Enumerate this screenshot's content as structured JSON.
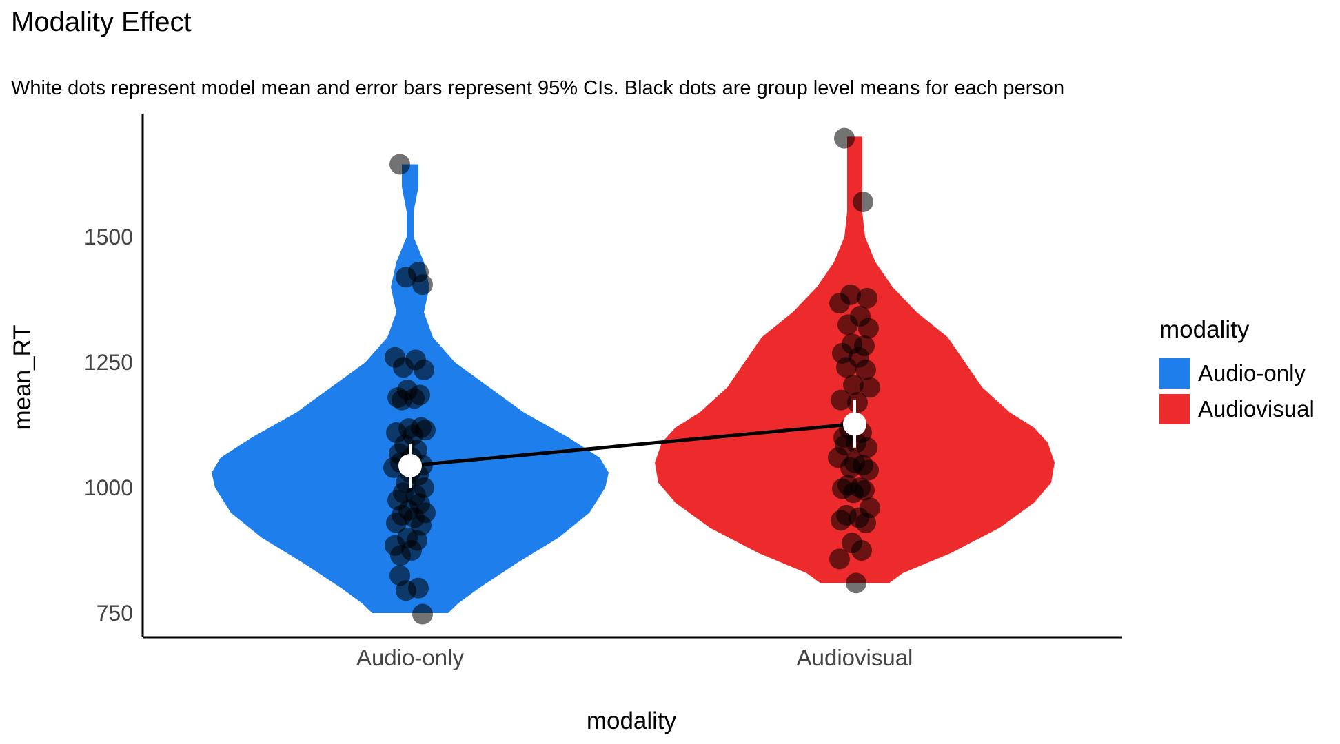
{
  "chart_data": {
    "type": "violin",
    "title": "Modality Effect",
    "subtitle": "White dots represent model mean and error bars represent 95% CIs. Black dots are group level means for each person",
    "xlabel": "modality",
    "ylabel": "mean_RT",
    "ylim": [
      700,
      1750
    ],
    "yticks": [
      750,
      1000,
      1250,
      1500
    ],
    "categories": [
      "Audio-only",
      "Audiovisual"
    ],
    "legend": {
      "title": "modality",
      "position": "right"
    },
    "grid": false,
    "series": [
      {
        "name": "Audio-only",
        "color": "#1e7fec",
        "model_mean": 1044,
        "ci": [
          1000,
          1088
        ],
        "violin_range": [
          750,
          1645
        ],
        "points": [
          1645,
          1430,
          1420,
          1405,
          1260,
          1255,
          1240,
          1235,
          1195,
          1185,
          1180,
          1178,
          1175,
          1120,
          1118,
          1115,
          1110,
          1105,
          1085,
          1075,
          1068,
          1060,
          1050,
          1045,
          1040,
          1030,
          1025,
          1010,
          1000,
          990,
          985,
          975,
          968,
          955,
          950,
          945,
          940,
          930,
          925,
          900,
          895,
          885,
          875,
          865,
          825,
          800,
          795,
          748
        ]
      },
      {
        "name": "Audiovisual",
        "color": "#ed2b2c",
        "model_mean": 1127,
        "ci": [
          1080,
          1175
        ],
        "violin_range": [
          810,
          1700
        ],
        "points": [
          1697,
          1570,
          1385,
          1378,
          1368,
          1342,
          1325,
          1318,
          1287,
          1283,
          1268,
          1260,
          1240,
          1235,
          1205,
          1200,
          1175,
          1170,
          1118,
          1110,
          1100,
          1090,
          1085,
          1080,
          1060,
          1050,
          1045,
          1040,
          1035,
          1005,
          1000,
          998,
          995,
          990,
          960,
          945,
          940,
          935,
          930,
          890,
          875,
          858,
          810
        ]
      }
    ]
  }
}
